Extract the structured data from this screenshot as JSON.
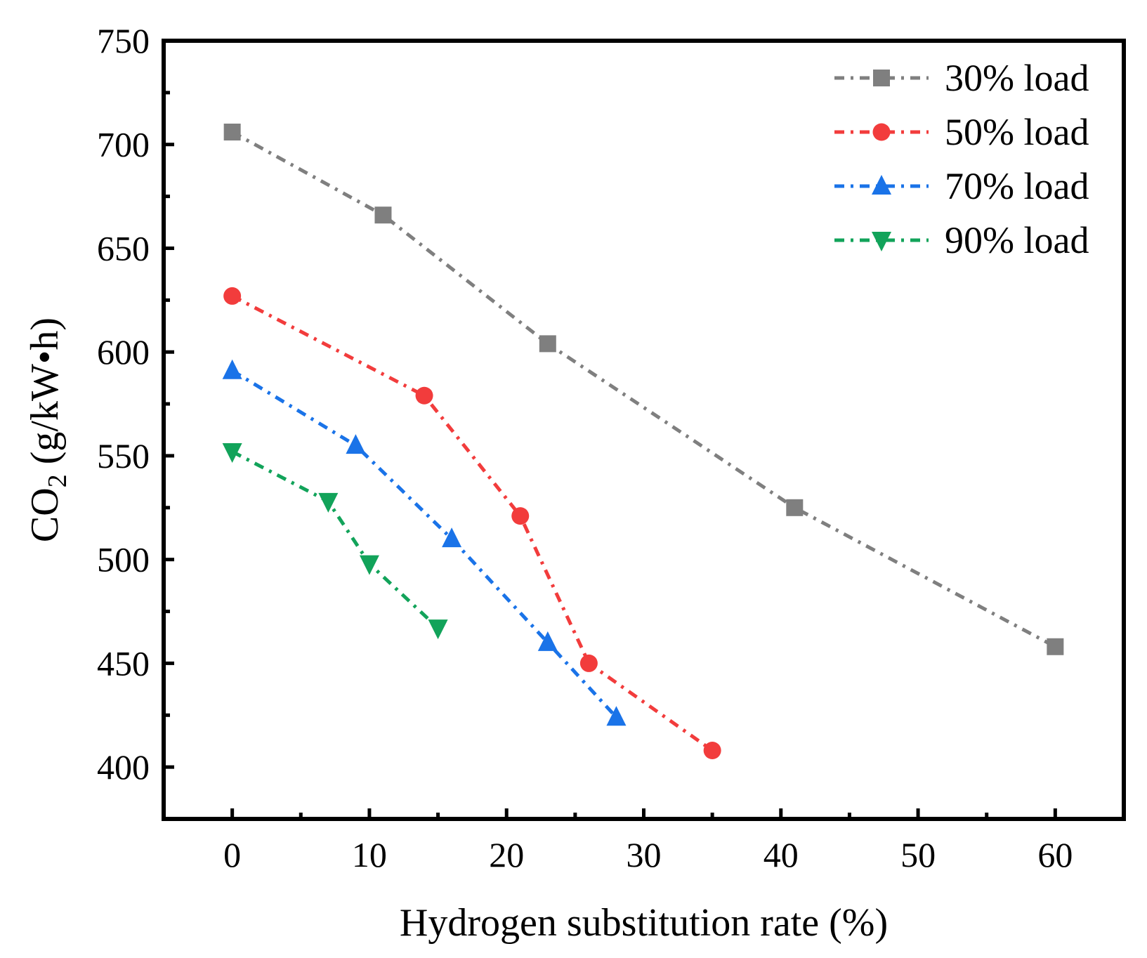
{
  "chart_data": {
    "type": "line",
    "title": "",
    "xlabel": "Hydrogen substitution rate (%)",
    "ylabel": "CO",
    "ylabel_sub": "2",
    "ylabel_unit": " (g/kW•h)",
    "xlim": [
      -5,
      65
    ],
    "ylim": [
      375,
      750
    ],
    "x_ticks": [
      0,
      10,
      20,
      30,
      40,
      50,
      60
    ],
    "y_ticks": [
      400,
      450,
      500,
      550,
      600,
      650,
      700,
      750
    ],
    "grid": false,
    "legend_position": "top-right",
    "series": [
      {
        "name": "30% load",
        "marker": "square",
        "color": "#7f7f7f",
        "x": [
          0,
          11,
          23,
          41,
          60
        ],
        "y": [
          706,
          666,
          604,
          525,
          458
        ]
      },
      {
        "name": "50% load",
        "marker": "circle",
        "color": "#f23c3c",
        "x": [
          0,
          14,
          21,
          26,
          35
        ],
        "y": [
          627,
          579,
          521,
          450,
          408
        ]
      },
      {
        "name": "70% load",
        "marker": "triangle-up",
        "color": "#1a73e8",
        "x": [
          0,
          9,
          16,
          23,
          28
        ],
        "y": [
          591,
          555,
          510,
          460,
          424
        ]
      },
      {
        "name": "90% load",
        "marker": "triangle-down",
        "color": "#12a35a",
        "x": [
          0,
          7,
          10,
          15
        ],
        "y": [
          552,
          528,
          498,
          467
        ]
      }
    ]
  }
}
